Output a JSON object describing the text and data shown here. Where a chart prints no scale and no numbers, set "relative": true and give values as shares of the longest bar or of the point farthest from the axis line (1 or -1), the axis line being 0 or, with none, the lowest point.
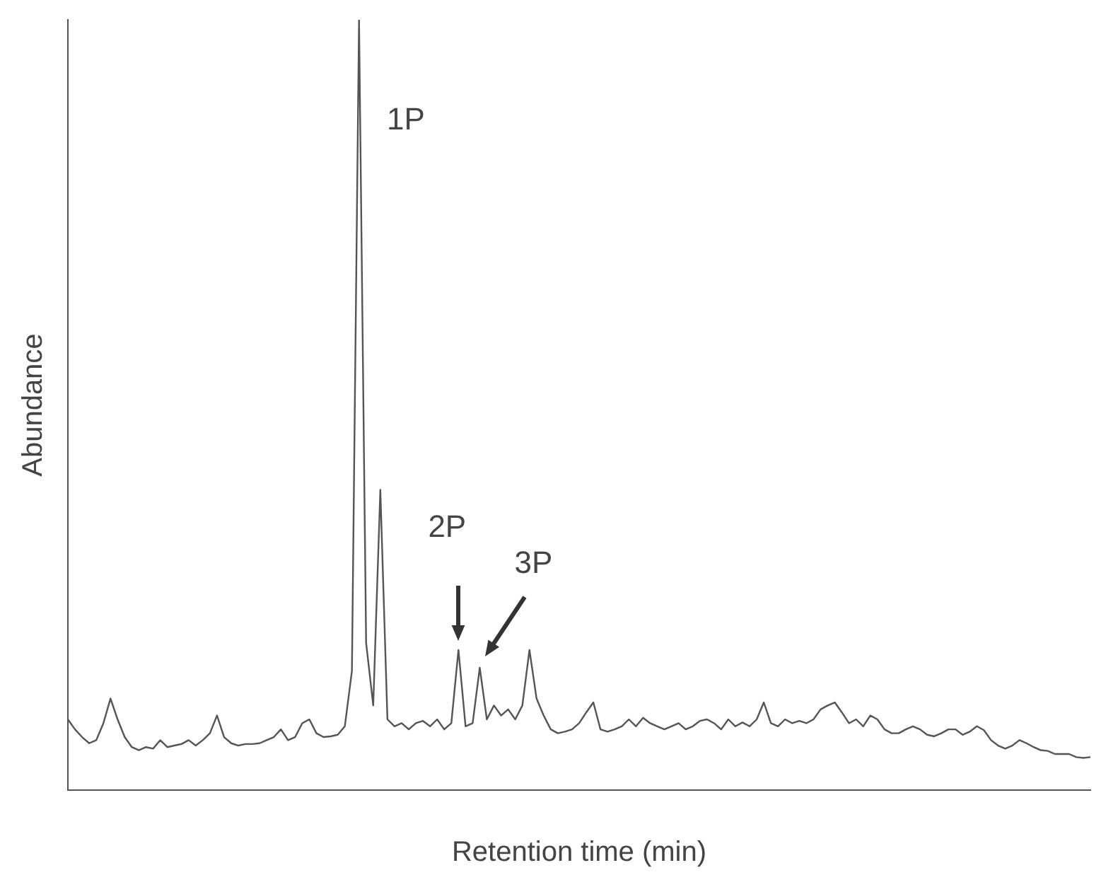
{
  "chart_data": {
    "type": "line",
    "xlabel": "Retention time (min)",
    "ylabel": "Abundance",
    "relative": true,
    "grid": false,
    "legend": false,
    "marker": "none",
    "line_style": "solid",
    "annotations": [
      "1P",
      "2P",
      "3P"
    ],
    "categories": [
      null,
      null,
      null,
      null,
      null,
      null,
      null,
      null,
      null,
      null,
      null,
      null,
      null,
      null,
      null,
      null,
      null,
      null,
      null,
      null,
      null,
      null,
      null,
      null,
      null,
      null,
      null,
      null,
      null,
      null,
      null,
      null,
      null,
      null,
      null,
      null,
      null,
      null,
      null,
      null,
      null,
      null,
      null,
      null,
      null,
      null,
      null,
      null,
      null,
      null,
      null,
      null,
      null,
      null,
      null,
      null,
      null,
      null,
      null,
      null,
      null,
      null,
      null,
      null,
      null,
      null,
      null,
      null,
      null,
      null,
      null,
      null,
      null,
      null,
      null,
      null,
      null,
      null,
      null,
      null,
      null,
      null,
      null,
      null,
      null,
      null,
      null,
      null,
      null,
      null,
      null,
      null,
      null,
      null,
      null,
      null,
      null,
      null,
      null,
      null,
      null,
      null,
      null,
      null,
      null,
      null,
      null,
      null,
      null,
      null,
      null,
      null,
      null,
      null,
      null,
      null,
      null,
      null,
      null,
      null,
      null,
      null,
      null,
      null,
      null,
      null,
      null,
      null,
      null,
      null,
      null,
      null,
      null,
      null,
      null,
      null,
      null,
      null,
      null,
      null,
      null,
      null,
      null,
      null,
      null
    ],
    "series": [
      {
        "color": "#555555",
        "values": [
          0.092,
          0.079,
          0.069,
          0.061,
          0.065,
          0.087,
          0.119,
          0.092,
          0.069,
          0.056,
          0.052,
          0.056,
          0.054,
          0.065,
          0.056,
          0.058,
          0.06,
          0.065,
          0.058,
          0.065,
          0.074,
          0.097,
          0.069,
          0.061,
          0.058,
          0.06,
          0.06,
          0.061,
          0.065,
          0.069,
          0.079,
          0.065,
          0.069,
          0.087,
          0.092,
          0.074,
          0.069,
          0.07,
          0.072,
          0.083,
          0.155,
          1,
          0.191,
          0.11,
          0.39,
          0.092,
          0.083,
          0.087,
          0.079,
          0.087,
          0.09,
          0.083,
          0.092,
          0.079,
          0.087,
          0.182,
          0.083,
          0.087,
          0.159,
          0.092,
          0.11,
          0.097,
          0.105,
          0.092,
          0.11,
          0.182,
          0.119,
          0.097,
          0.079,
          0.074,
          0.076,
          0.079,
          0.087,
          0.101,
          0.114,
          0.079,
          0.076,
          0.079,
          0.083,
          0.092,
          0.083,
          0.094,
          0.087,
          0.083,
          0.079,
          0.083,
          0.087,
          0.079,
          0.083,
          0.09,
          0.092,
          0.087,
          0.079,
          0.092,
          0.083,
          0.088,
          0.083,
          0.092,
          0.114,
          0.087,
          0.083,
          0.092,
          0.087,
          0.09,
          0.087,
          0.092,
          0.105,
          0.11,
          0.114,
          0.101,
          0.087,
          0.092,
          0.083,
          0.097,
          0.092,
          0.079,
          0.074,
          0.074,
          0.079,
          0.083,
          0.079,
          0.072,
          0.07,
          0.074,
          0.079,
          0.079,
          0.072,
          0.076,
          0.083,
          0.078,
          0.065,
          0.058,
          0.054,
          0.058,
          0.065,
          0.061,
          0.056,
          0.052,
          0.051,
          0.047,
          0.047,
          0.047,
          0.043,
          0.042,
          0.043
        ]
      }
    ]
  }
}
